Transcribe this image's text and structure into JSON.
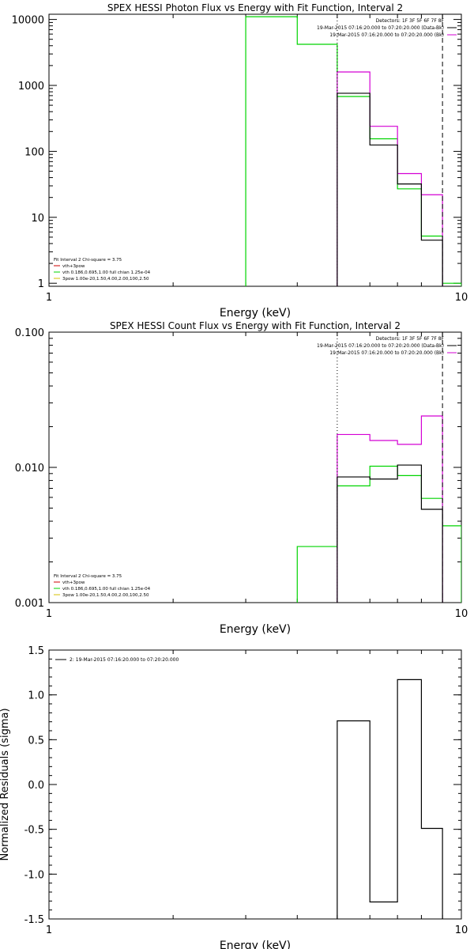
{
  "colors": {
    "black": "#000000",
    "magenta": "#d400d4",
    "green": "#00d400",
    "yellow": "#d4c000",
    "red": "#cc0000"
  },
  "chart_data": [
    {
      "type": "line",
      "title": "SPEX HESSI Photon Flux vs Energy with Fit Function, Interval 2",
      "xlabel": "Energy (keV)",
      "ylabel": "",
      "xscale": "log",
      "yscale": "log",
      "xlim": [
        1,
        10
      ],
      "ylim": [
        0.9,
        12000
      ],
      "x_ticks": [
        {
          "value": 1,
          "label": "1"
        },
        {
          "value": 10,
          "label": "10"
        }
      ],
      "y_ticks": [
        {
          "value": 1,
          "label": "1"
        },
        {
          "value": 10,
          "label": "10"
        },
        {
          "value": 100,
          "label": "100"
        },
        {
          "value": 1000,
          "label": "1000"
        },
        {
          "value": 10000,
          "label": "10000"
        }
      ],
      "legend_top_right": [
        "Detectors: 1F 3F 5F 6F 7F 8F",
        "19-Mar-2015 07:16:20.000 to 07:20:20.000 (Data-Bk)",
        "19-Mar-2015 07:16:20.000 to 07:20:20.000 (Bk)"
      ],
      "legend_bottom_left": [
        "Fit Interval 2   Chi-square = 3.75",
        "vth+3pow",
        "vth 0.186,0.695,1.00  full chian 1.25e-04",
        "3pow 1.00e-20,1.50,4.00,2.00,100,2.50"
      ],
      "vlines": [
        {
          "x": 5.0,
          "style": "dotted",
          "color": "black"
        },
        {
          "x": 9.0,
          "style": "dashed",
          "color": "black"
        }
      ],
      "series": [
        {
          "color": "green",
          "edges": [
            3.0,
            4.0,
            5.0,
            6.0,
            7.0,
            8.0,
            9.0,
            10.0
          ],
          "values": [
            11000,
            4200,
            680,
            155,
            27,
            5.2,
            1.0
          ]
        },
        {
          "color": "magenta",
          "edges": [
            5.0,
            6.0,
            7.0,
            8.0,
            9.0
          ],
          "values": [
            1600,
            240,
            46,
            22
          ]
        },
        {
          "color": "black",
          "edges": [
            5.0,
            6.0,
            7.0,
            8.0,
            9.0
          ],
          "values": [
            760,
            125,
            32,
            4.5
          ]
        }
      ]
    },
    {
      "type": "line",
      "title": "SPEX HESSI Count Flux vs Energy with Fit Function, Interval 2",
      "xlabel": "Energy (keV)",
      "ylabel": "",
      "xscale": "log",
      "yscale": "log",
      "xlim": [
        1,
        10
      ],
      "ylim": [
        0.001,
        0.1
      ],
      "x_ticks": [
        {
          "value": 1,
          "label": "1"
        },
        {
          "value": 10,
          "label": "10"
        }
      ],
      "y_ticks": [
        {
          "value": 0.001,
          "label": "0.001"
        },
        {
          "value": 0.01,
          "label": "0.010"
        },
        {
          "value": 0.1,
          "label": "0.100"
        }
      ],
      "legend_top_right": [
        "Detectors: 1F 3F 5F 6F 7F 8F",
        "19-Mar-2015 07:16:20.000 to 07:20:20.000 (Data-Bk)",
        "19-Mar-2015 07:16:20.000 to 07:20:20.000 (Bk)"
      ],
      "legend_bottom_left": [
        "Fit Interval 2   Chi-square = 3.75",
        "vth+3pow",
        "vth 0.186,0.695,1.00  full chian 1.25e-04",
        "3pow 1.00e-20,1.50,4.00,2.00,100,2.50"
      ],
      "vlines": [
        {
          "x": 5.0,
          "style": "dotted",
          "color": "black"
        },
        {
          "x": 9.0,
          "style": "dashed",
          "color": "black"
        }
      ],
      "series": [
        {
          "color": "green",
          "edges": [
            4.0,
            5.0,
            6.0,
            7.0,
            8.0,
            9.0,
            10.0
          ],
          "values": [
            0.0026,
            0.0073,
            0.0102,
            0.0087,
            0.0059,
            0.0037
          ]
        },
        {
          "color": "magenta",
          "edges": [
            5.0,
            6.0,
            7.0,
            8.0,
            9.0
          ],
          "values": [
            0.0175,
            0.0158,
            0.0148,
            0.024
          ]
        },
        {
          "color": "black",
          "edges": [
            5.0,
            6.0,
            7.0,
            8.0,
            9.0
          ],
          "values": [
            0.0085,
            0.0082,
            0.0104,
            0.0049
          ]
        }
      ]
    },
    {
      "type": "line",
      "title": "",
      "xlabel": "Energy (keV)",
      "ylabel": "Normalized Residuals (sigma)",
      "xscale": "log",
      "yscale": "linear",
      "xlim": [
        1,
        10
      ],
      "ylim": [
        -1.5,
        1.5
      ],
      "x_ticks": [
        {
          "value": 1,
          "label": "1"
        },
        {
          "value": 10,
          "label": "10"
        }
      ],
      "y_ticks": [
        {
          "value": -1.5,
          "label": "-1.5"
        },
        {
          "value": -1.0,
          "label": "-1.0"
        },
        {
          "value": -0.5,
          "label": "-0.5"
        },
        {
          "value": 0.0,
          "label": "0.0"
        },
        {
          "value": 0.5,
          "label": "0.5"
        },
        {
          "value": 1.0,
          "label": "1.0"
        },
        {
          "value": 1.5,
          "label": "1.5"
        }
      ],
      "legend_top_left": [
        "2: 19-Mar-2015 07:16:20.000 to 07:20:20.000"
      ],
      "series": [
        {
          "color": "black",
          "edges": [
            5.0,
            6.0,
            7.0,
            8.0,
            9.0
          ],
          "values": [
            0.71,
            -1.31,
            1.17,
            -0.49
          ]
        }
      ]
    }
  ]
}
